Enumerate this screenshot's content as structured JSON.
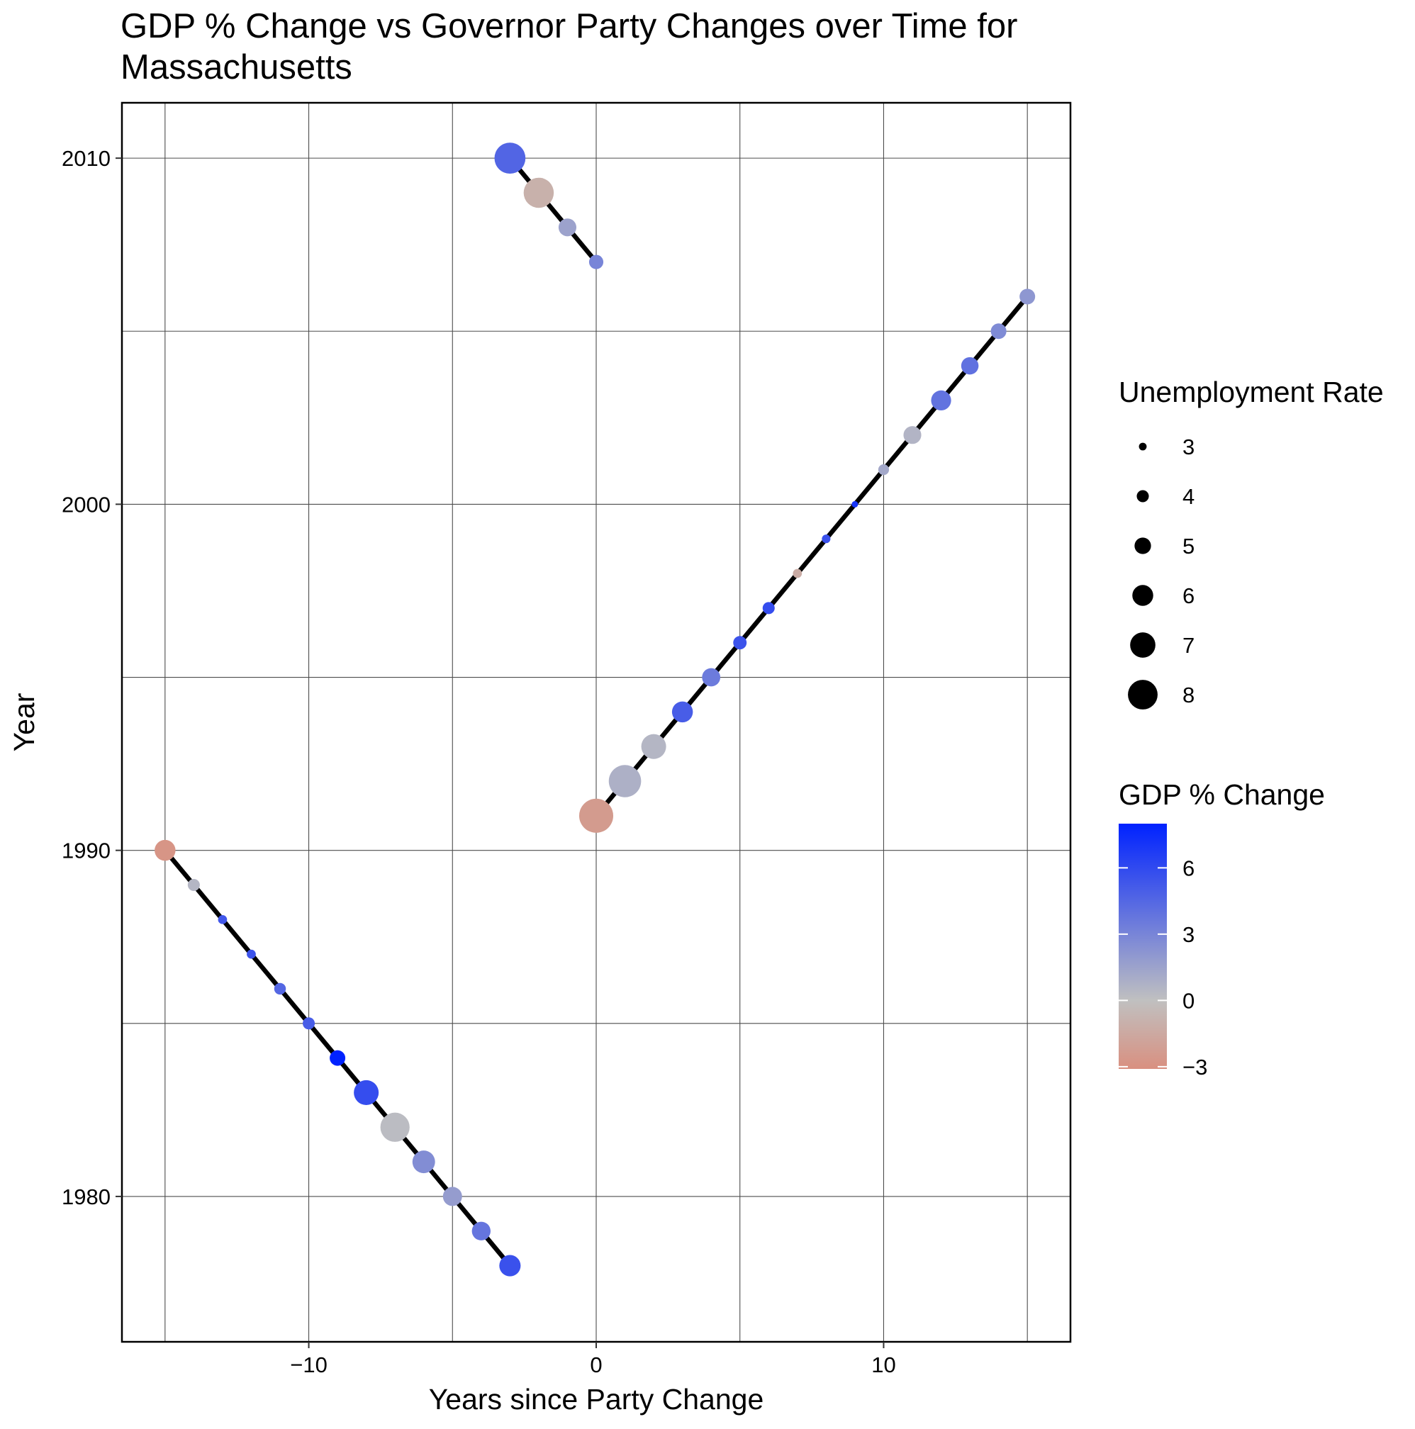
{
  "chart_data": {
    "type": "scatter",
    "title": "GDP % Change vs Governor Party Changes over Time for Massachusetts",
    "xlabel": "Years since Party Change",
    "ylabel": "Year",
    "xlim": [
      -16.5,
      16.5
    ],
    "ylim": [
      1975.8,
      2011.6
    ],
    "x_ticks": [
      -10,
      0,
      10
    ],
    "x_tick_labels": [
      "−10",
      "0",
      "10"
    ],
    "y_ticks": [
      1980,
      1990,
      2000,
      2010
    ],
    "y_tick_labels": [
      "1980",
      "1990",
      "2000",
      "2010"
    ],
    "grid": true,
    "connected_by_line": true,
    "segments": [
      {
        "points": [
          {
            "x": -15,
            "year": 1990,
            "unemployment": 6.0,
            "gdp_change": -2.8
          },
          {
            "x": -14,
            "year": 1989,
            "unemployment": 4.0,
            "gdp_change": 0.5
          },
          {
            "x": -13,
            "year": 1988,
            "unemployment": 3.3,
            "gdp_change": 5.3
          },
          {
            "x": -12,
            "year": 1987,
            "unemployment": 3.3,
            "gdp_change": 5.5
          },
          {
            "x": -11,
            "year": 1986,
            "unemployment": 3.9,
            "gdp_change": 4.5
          },
          {
            "x": -10,
            "year": 1985,
            "unemployment": 4.0,
            "gdp_change": 5.0
          },
          {
            "x": -9,
            "year": 1984,
            "unemployment": 4.8,
            "gdp_change": 8.0
          },
          {
            "x": -8,
            "year": 1983,
            "unemployment": 6.9,
            "gdp_change": 5.8
          },
          {
            "x": -7,
            "year": 1982,
            "unemployment": 7.9,
            "gdp_change": 0.2
          },
          {
            "x": -6,
            "year": 1981,
            "unemployment": 6.4,
            "gdp_change": 2.6
          },
          {
            "x": -5,
            "year": 1980,
            "unemployment": 5.6,
            "gdp_change": 1.8
          },
          {
            "x": -4,
            "year": 1979,
            "unemployment": 5.5,
            "gdp_change": 3.8
          },
          {
            "x": -3,
            "year": 1978,
            "unemployment": 6.1,
            "gdp_change": 5.6
          }
        ]
      },
      {
        "points": [
          {
            "x": 0,
            "year": 1991,
            "unemployment": 9.0,
            "gdp_change": -2.4
          },
          {
            "x": 1,
            "year": 1992,
            "unemployment": 8.6,
            "gdp_change": 0.8
          },
          {
            "x": 2,
            "year": 1993,
            "unemployment": 6.9,
            "gdp_change": 0.5
          },
          {
            "x": 3,
            "year": 1994,
            "unemployment": 6.0,
            "gdp_change": 5.0
          },
          {
            "x": 4,
            "year": 1995,
            "unemployment": 5.4,
            "gdp_change": 3.5
          },
          {
            "x": 5,
            "year": 1996,
            "unemployment": 4.3,
            "gdp_change": 5.5
          },
          {
            "x": 6,
            "year": 1997,
            "unemployment": 4.0,
            "gdp_change": 5.8
          },
          {
            "x": 7,
            "year": 1998,
            "unemployment": 3.3,
            "gdp_change": -1.3
          },
          {
            "x": 8,
            "year": 1999,
            "unemployment": 3.2,
            "gdp_change": 5.6
          },
          {
            "x": 9,
            "year": 2000,
            "unemployment": 2.7,
            "gdp_change": 7.0
          },
          {
            "x": 10,
            "year": 2001,
            "unemployment": 3.7,
            "gdp_change": 1.2
          },
          {
            "x": 11,
            "year": 2002,
            "unemployment": 5.3,
            "gdp_change": 0.6
          },
          {
            "x": 12,
            "year": 2003,
            "unemployment": 5.8,
            "gdp_change": 3.9
          },
          {
            "x": 13,
            "year": 2004,
            "unemployment": 5.2,
            "gdp_change": 4.0
          },
          {
            "x": 14,
            "year": 2005,
            "unemployment": 4.8,
            "gdp_change": 2.7
          },
          {
            "x": 15,
            "year": 2006,
            "unemployment": 4.8,
            "gdp_change": 2.1
          }
        ]
      },
      {
        "points": [
          {
            "x": -3,
            "year": 2010,
            "unemployment": 8.3,
            "gdp_change": 4.6
          },
          {
            "x": -2,
            "year": 2009,
            "unemployment": 8.1,
            "gdp_change": -1.0
          },
          {
            "x": -1,
            "year": 2008,
            "unemployment": 5.3,
            "gdp_change": 1.5
          },
          {
            "x": 0,
            "year": 2007,
            "unemployment": 4.5,
            "gdp_change": 3.0
          }
        ]
      }
    ],
    "size_legend": {
      "title": "Unemployment Rate",
      "values": [
        3,
        4,
        5,
        6,
        7,
        8
      ],
      "labels": [
        "3",
        "4",
        "5",
        "6",
        "7",
        "8"
      ]
    },
    "color_legend": {
      "title": "GDP % Change",
      "min": -3.1,
      "max": 8.0,
      "ticks": [
        6,
        3,
        0,
        -3
      ],
      "tick_labels": [
        "6",
        "3",
        "0",
        "−3"
      ],
      "low_color": "#D99080",
      "mid_color": "#C0C0C0",
      "high_color": "#0022FF",
      "midpoint": 0
    },
    "colors": {
      "line": "#000000",
      "grid": "#4d4d4d",
      "panel_border": "#000000"
    }
  }
}
